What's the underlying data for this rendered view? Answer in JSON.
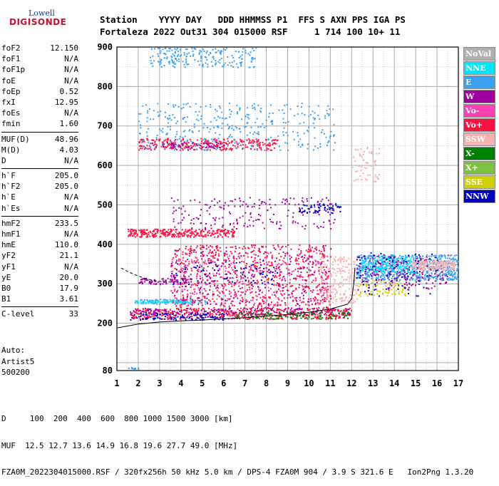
{
  "logo": {
    "top": "Lowell",
    "bottom": "DIGISONDE"
  },
  "header": {
    "line1": "Station    YYYY DAY   DDD HHMMSS P1  FFS S AXN PPS IGA PS",
    "line2": "Fortaleza 2022 Out31 304 015000 RSF     1 714 100 10+ 11"
  },
  "params": [
    [
      [
        "foF2",
        "12.150"
      ],
      [
        "foF1",
        "N/A"
      ],
      [
        "foF1p",
        "N/A"
      ],
      [
        "foE",
        "N/A"
      ],
      [
        "foEp",
        "0.52"
      ],
      [
        "fxI",
        "12.95"
      ],
      [
        "foEs",
        "N/A"
      ],
      [
        "fmin",
        "1.60"
      ]
    ],
    [
      [
        "MUF(D)",
        "48.96"
      ],
      [
        "M(D)",
        "4.03"
      ],
      [
        "D",
        "N/A"
      ]
    ],
    [
      [
        "h`F",
        "205.0"
      ],
      [
        "h`F2",
        "205.0"
      ],
      [
        "h`E",
        "N/A"
      ],
      [
        "h`Es",
        "N/A"
      ]
    ],
    [
      [
        "hmF2",
        "233.5"
      ],
      [
        "hmF1",
        "N/A"
      ],
      [
        "hmE",
        "110.0"
      ],
      [
        "yF2",
        "21.1"
      ],
      [
        "yF1",
        "N/A"
      ],
      [
        "yE",
        "20.0"
      ],
      [
        "B0",
        "17.9"
      ],
      [
        "B1",
        "3.61"
      ]
    ],
    [
      [
        "C-level",
        "33"
      ]
    ]
  ],
  "auto": {
    "line1": "Auto:",
    "line2": "Artist5",
    "line3": "500200"
  },
  "legend": [
    {
      "label": "NoVal",
      "color": "#b0b0b0"
    },
    {
      "label": "NNE",
      "color": "#00e5ff"
    },
    {
      "label": "E",
      "color": "#3aa0f0"
    },
    {
      "label": "W",
      "color": "#a000a0"
    },
    {
      "label": "Vo-",
      "color": "#ff40b0"
    },
    {
      "label": "Vo+",
      "color": "#ff1040"
    },
    {
      "label": "SSW",
      "color": "#f8b0b0"
    },
    {
      "label": "X-",
      "color": "#008000"
    },
    {
      "label": "X+",
      "color": "#80c040"
    },
    {
      "label": "SSE",
      "color": "#d0d000"
    },
    {
      "label": "NNW",
      "color": "#0000c0"
    }
  ],
  "footer": {
    "line1": "D     100  200  400  600  800 1000 1500 3000 [km]",
    "line2": "MUF  12.5 12.7 13.6 14.9 16.8 19.6 27.7 49.0 [MHz]",
    "line3": "FZA0M_2022304015000.RSF / 320fx256h 50 kHz 5.0 km / DPS-4 FZA0M 904 / 3.9 S 321.6 E   Ion2Png 1.3.20"
  },
  "chart_data": {
    "type": "scatter",
    "xlim": [
      1,
      17
    ],
    "ylim": [
      80,
      900
    ],
    "x_ticks": [
      1,
      2,
      3,
      4,
      5,
      6,
      7,
      8,
      9,
      10,
      11,
      12,
      13,
      14,
      15,
      16,
      17
    ],
    "y_ticks": [
      80,
      200,
      300,
      400,
      500,
      600,
      700,
      800,
      900
    ],
    "grid": true,
    "trace_profile": {
      "x": [
        1.0,
        2.0,
        3.0,
        4.0,
        5.0,
        6.0,
        7.0,
        8.0,
        9.0,
        10.0,
        11.0,
        11.8,
        12.0,
        12.05,
        12.1,
        12.15
      ],
      "y": [
        188,
        198,
        203,
        206,
        208,
        211,
        214,
        218,
        222,
        228,
        236,
        248,
        262,
        280,
        300,
        340
      ]
    },
    "echo_regions": [
      {
        "name": "E",
        "x": [
          1.8,
          5.2
        ],
        "y": [
          250,
          262
        ],
        "n": 120
      },
      {
        "name": "NNE",
        "x": [
          1.8,
          4.5
        ],
        "y": [
          252,
          258
        ],
        "n": 60
      },
      {
        "name": "Vo+",
        "x": [
          1.6,
          12.0
        ],
        "y": [
          212,
          240
        ],
        "n": 500
      },
      {
        "name": "NNW",
        "x": [
          1.6,
          6.0
        ],
        "y": [
          210,
          228
        ],
        "n": 120
      },
      {
        "name": "X-",
        "x": [
          6.5,
          12.0
        ],
        "y": [
          212,
          230
        ],
        "n": 120
      },
      {
        "name": "W",
        "x": [
          1.6,
          12.0
        ],
        "y": [
          222,
          240
        ],
        "n": 160
      },
      {
        "name": "Vo+",
        "x": [
          3.5,
          11.0
        ],
        "y": [
          240,
          400
        ],
        "n": 700
      },
      {
        "name": "Vo-",
        "x": [
          3.5,
          11.0
        ],
        "y": [
          245,
          380
        ],
        "n": 250
      },
      {
        "name": "W",
        "x": [
          3.5,
          11.0
        ],
        "y": [
          245,
          400
        ],
        "n": 220
      },
      {
        "name": "NNW",
        "x": [
          3.5,
          8.5
        ],
        "y": [
          300,
          360
        ],
        "n": 80
      },
      {
        "name": "W",
        "x": [
          2.0,
          4.5
        ],
        "y": [
          300,
          315
        ],
        "n": 80
      },
      {
        "name": "SSW",
        "x": [
          10.5,
          12.3
        ],
        "y": [
          250,
          370
        ],
        "n": 200
      },
      {
        "name": "SSE",
        "x": [
          12.3,
          14.5
        ],
        "y": [
          270,
          310
        ],
        "n": 80
      },
      {
        "name": "E",
        "x": [
          12.2,
          17.0
        ],
        "y": [
          310,
          375
        ],
        "n": 700
      },
      {
        "name": "NNE",
        "x": [
          12.4,
          15.0
        ],
        "y": [
          330,
          370
        ],
        "n": 150
      },
      {
        "name": "W",
        "x": [
          12.2,
          16.5
        ],
        "y": [
          285,
          375
        ],
        "n": 180
      },
      {
        "name": "SSW",
        "x": [
          14.8,
          16.8
        ],
        "y": [
          335,
          360
        ],
        "n": 200
      },
      {
        "name": "NNW",
        "x": [
          12.2,
          16.0
        ],
        "y": [
          270,
          380
        ],
        "n": 80
      },
      {
        "name": "Vo+",
        "x": [
          1.5,
          6.5
        ],
        "y": [
          420,
          440
        ],
        "n": 300
      },
      {
        "name": "W",
        "x": [
          3.5,
          11.2
        ],
        "y": [
          440,
          520
        ],
        "n": 200
      },
      {
        "name": "NNW",
        "x": [
          9.5,
          11.5
        ],
        "y": [
          480,
          505
        ],
        "n": 60
      },
      {
        "name": "Vo+",
        "x": [
          2.0,
          8.5
        ],
        "y": [
          640,
          670
        ],
        "n": 300
      },
      {
        "name": "E",
        "x": [
          2.0,
          11.2
        ],
        "y": [
          640,
          760
        ],
        "n": 350
      },
      {
        "name": "W",
        "x": [
          2.5,
          6.0
        ],
        "y": [
          645,
          660
        ],
        "n": 60
      },
      {
        "name": "E",
        "x": [
          2.5,
          7.5
        ],
        "y": [
          850,
          900
        ],
        "n": 200
      },
      {
        "name": "SSW",
        "x": [
          12.0,
          13.3
        ],
        "y": [
          560,
          650
        ],
        "n": 60
      },
      {
        "name": "E",
        "x": [
          1.5,
          2.0
        ],
        "y": [
          85,
          89
        ],
        "n": 12
      }
    ]
  }
}
